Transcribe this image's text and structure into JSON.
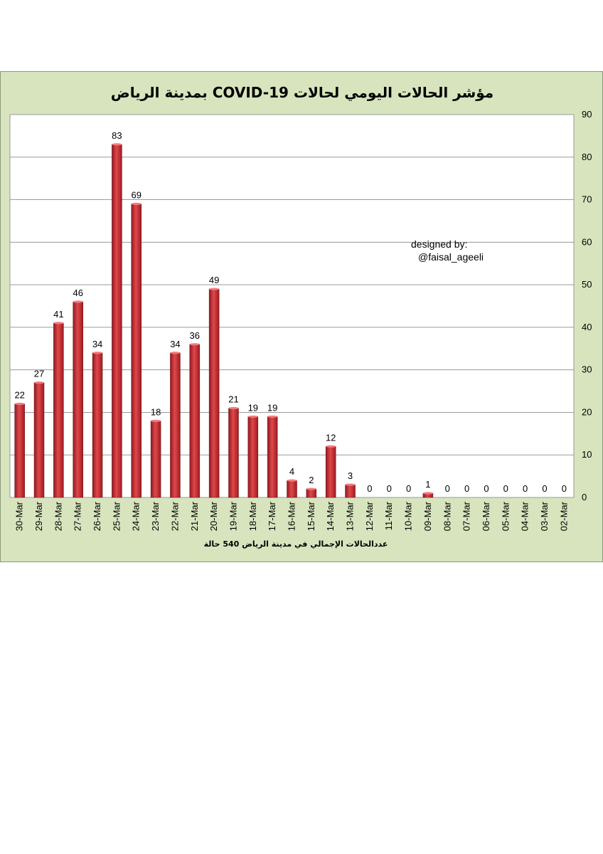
{
  "chart_data": {
    "type": "bar",
    "title": "مؤشر الحالات اليومي لحالات  COVID-19 بمدينة الرياض",
    "xlabel": "عددالحالات الإجمالي في مدينة الرياض  540 حالة",
    "ylabel": "",
    "ylim": [
      0,
      90
    ],
    "yticks": [
      0,
      10,
      20,
      30,
      40,
      50,
      60,
      70,
      80,
      90
    ],
    "y_axis_side": "right",
    "x_order": "reversed",
    "grid": true,
    "legend": "none",
    "bar_color": "#c0262b",
    "categories": [
      "30-Mar",
      "29-Mar",
      "28-Mar",
      "27-Mar",
      "26-Mar",
      "25-Mar",
      "24-Mar",
      "23-Mar",
      "22-Mar",
      "21-Mar",
      "20-Mar",
      "19-Mar",
      "18-Mar",
      "17-Mar",
      "16-Mar",
      "15-Mar",
      "14-Mar",
      "13-Mar",
      "12-Mar",
      "11-Mar",
      "10-Mar",
      "09-Mar",
      "08-Mar",
      "07-Mar",
      "06-Mar",
      "05-Mar",
      "04-Mar",
      "03-Mar",
      "02-Mar"
    ],
    "values": [
      22,
      27,
      41,
      46,
      34,
      83,
      69,
      18,
      34,
      36,
      49,
      21,
      19,
      19,
      4,
      2,
      12,
      3,
      0,
      0,
      0,
      1,
      0,
      0,
      0,
      0,
      0,
      0,
      0
    ],
    "annotation": {
      "line1": "designed by:",
      "line2": "@faisal_ageeli"
    }
  }
}
